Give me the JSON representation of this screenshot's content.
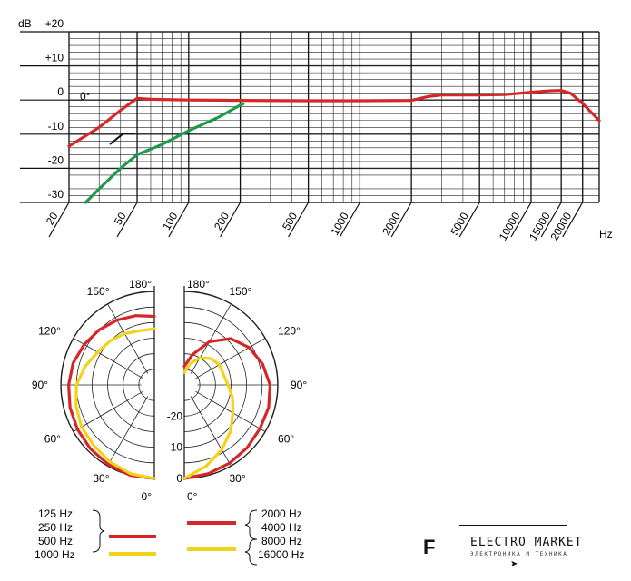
{
  "chart_data": [
    {
      "type": "line",
      "title": "",
      "xlabel": "Hz",
      "ylabel": "dB",
      "x_scale": "log",
      "xlim": [
        20,
        25000
      ],
      "ylim": [
        -30,
        20
      ],
      "x_ticks": [
        20,
        50,
        100,
        200,
        500,
        1000,
        2000,
        5000,
        10000,
        15000,
        20000
      ],
      "x_tick_labels": [
        "20",
        "50",
        "100",
        "200",
        "500",
        "1000",
        "2000",
        "5000",
        "10000",
        "15000",
        "20000"
      ],
      "y_ticks": [
        20,
        10,
        0,
        -10,
        -20,
        -30
      ],
      "y_tick_labels": [
        "+20",
        "+10",
        "0",
        "-10",
        "-20",
        "-30"
      ],
      "grid": true,
      "annotation": "0°",
      "series": [
        {
          "name": "",
          "color": "#d62728",
          "points": [
            [
              20,
              -13.5
            ],
            [
              30,
              -8
            ],
            [
              40,
              -3
            ],
            [
              50,
              0.5
            ],
            [
              60,
              0.2
            ],
            [
              100,
              0
            ],
            [
              200,
              -0.1
            ],
            [
              500,
              -0.2
            ],
            [
              1000,
              -0.2
            ],
            [
              2000,
              -0.1
            ],
            [
              2500,
              1
            ],
            [
              3000,
              1.5
            ],
            [
              5000,
              1.5
            ],
            [
              7000,
              1.6
            ],
            [
              10000,
              2.3
            ],
            [
              13000,
              2.7
            ],
            [
              15000,
              2.8
            ],
            [
              17000,
              2
            ],
            [
              20000,
              -1
            ],
            [
              25000,
              -6
            ]
          ]
        },
        {
          "name": "",
          "color": "#1a9a4a",
          "points": [
            [
              25,
              -30
            ],
            [
              30,
              -26
            ],
            [
              40,
              -20
            ],
            [
              50,
              -16
            ],
            [
              70,
              -13
            ],
            [
              100,
              -9
            ],
            [
              150,
              -5
            ],
            [
              200,
              -1.5
            ],
            [
              210,
              -1
            ]
          ]
        }
      ]
    },
    {
      "type": "polar",
      "title": "",
      "angle_labels": [
        "180°",
        "150°",
        "120°",
        "90°",
        "60°",
        "30°",
        "0°"
      ],
      "radial_labels": [
        "-20",
        "-10",
        "0"
      ],
      "rlim": [
        -30,
        0
      ],
      "series": [
        {
          "name": "125 Hz / 250 Hz / 500 Hz",
          "color": "#d62728",
          "side": "left",
          "points": [
            [
              0,
              0
            ],
            [
              15,
              0
            ],
            [
              30,
              -0.5
            ],
            [
              45,
              -1
            ],
            [
              60,
              -1.5
            ],
            [
              75,
              -2
            ],
            [
              90,
              -2.5
            ],
            [
              105,
              -3
            ],
            [
              120,
              -4
            ],
            [
              135,
              -5
            ],
            [
              150,
              -6
            ],
            [
              165,
              -7
            ],
            [
              180,
              -8
            ]
          ]
        },
        {
          "name": "1000 Hz",
          "color": "#f2d21b",
          "side": "left",
          "points": [
            [
              0,
              0
            ],
            [
              15,
              -0.5
            ],
            [
              30,
              -1.5
            ],
            [
              45,
              -2.5
            ],
            [
              60,
              -3
            ],
            [
              75,
              -4
            ],
            [
              90,
              -5
            ],
            [
              105,
              -7
            ],
            [
              120,
              -9
            ],
            [
              135,
              -10
            ],
            [
              150,
              -11
            ],
            [
              165,
              -12
            ],
            [
              180,
              -12
            ]
          ]
        },
        {
          "name": "2000 Hz / 4000 Hz",
          "color": "#d62728",
          "side": "right",
          "points": [
            [
              0,
              0
            ],
            [
              15,
              -0.5
            ],
            [
              30,
              -1
            ],
            [
              45,
              -1.5
            ],
            [
              60,
              -2
            ],
            [
              75,
              -2
            ],
            [
              90,
              -2.5
            ],
            [
              105,
              -4
            ],
            [
              120,
              -6
            ],
            [
              135,
              -9
            ],
            [
              150,
              -14
            ],
            [
              165,
              -20
            ],
            [
              180,
              -24
            ]
          ]
        },
        {
          "name": "8000 Hz / 16000 Hz",
          "color": "#f2d21b",
          "side": "right",
          "points": [
            [
              0,
              0
            ],
            [
              15,
              -3
            ],
            [
              30,
              -6
            ],
            [
              45,
              -9
            ],
            [
              60,
              -12
            ],
            [
              75,
              -14
            ],
            [
              90,
              -16
            ],
            [
              105,
              -17
            ],
            [
              120,
              -17
            ],
            [
              135,
              -18
            ],
            [
              150,
              -20
            ],
            [
              165,
              -23
            ],
            [
              180,
              -26
            ]
          ]
        }
      ]
    }
  ],
  "legend": {
    "left_red": [
      "125 Hz",
      "250 Hz",
      "500 Hz"
    ],
    "left_yellow": [
      "1000 Hz"
    ],
    "right_red": [
      "2000 Hz",
      "4000 Hz"
    ],
    "right_yellow": [
      "8000 Hz",
      "16000 Hz"
    ]
  },
  "logo": {
    "mark": "F",
    "brand": "ELECTRO MARKET",
    "subtitle": "ЭЛЕКТРОНИКА И ТЕХНИКА"
  }
}
